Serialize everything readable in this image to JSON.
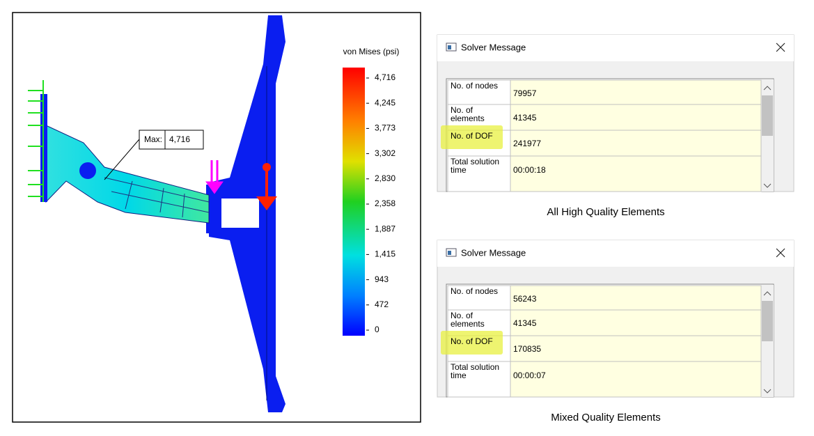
{
  "model_view": {
    "legend_title": "von Mises (psi)",
    "legend_labels": [
      "4,716",
      "4,245",
      "3,773",
      "3,302",
      "2,830",
      "2,358",
      "1,887",
      "1,415",
      "943",
      "472",
      "0"
    ],
    "max_label": "Max:",
    "max_value": "4,716"
  },
  "dialogs": [
    {
      "title": "Solver Message",
      "caption": "All High Quality Elements",
      "rows": [
        [
          "No. of nodes",
          "79957"
        ],
        [
          "No. of elements",
          "41345"
        ],
        [
          "No. of DOF",
          "241977"
        ],
        [
          "Total solution time",
          "00:00:18"
        ]
      ]
    },
    {
      "title": "Solver Message",
      "caption": "Mixed Quality Elements",
      "rows": [
        [
          "No. of nodes",
          "56243"
        ],
        [
          "No. of elements",
          "41345"
        ],
        [
          "No. of DOF",
          "170835"
        ],
        [
          "Total solution time",
          "00:00:07"
        ]
      ]
    }
  ]
}
